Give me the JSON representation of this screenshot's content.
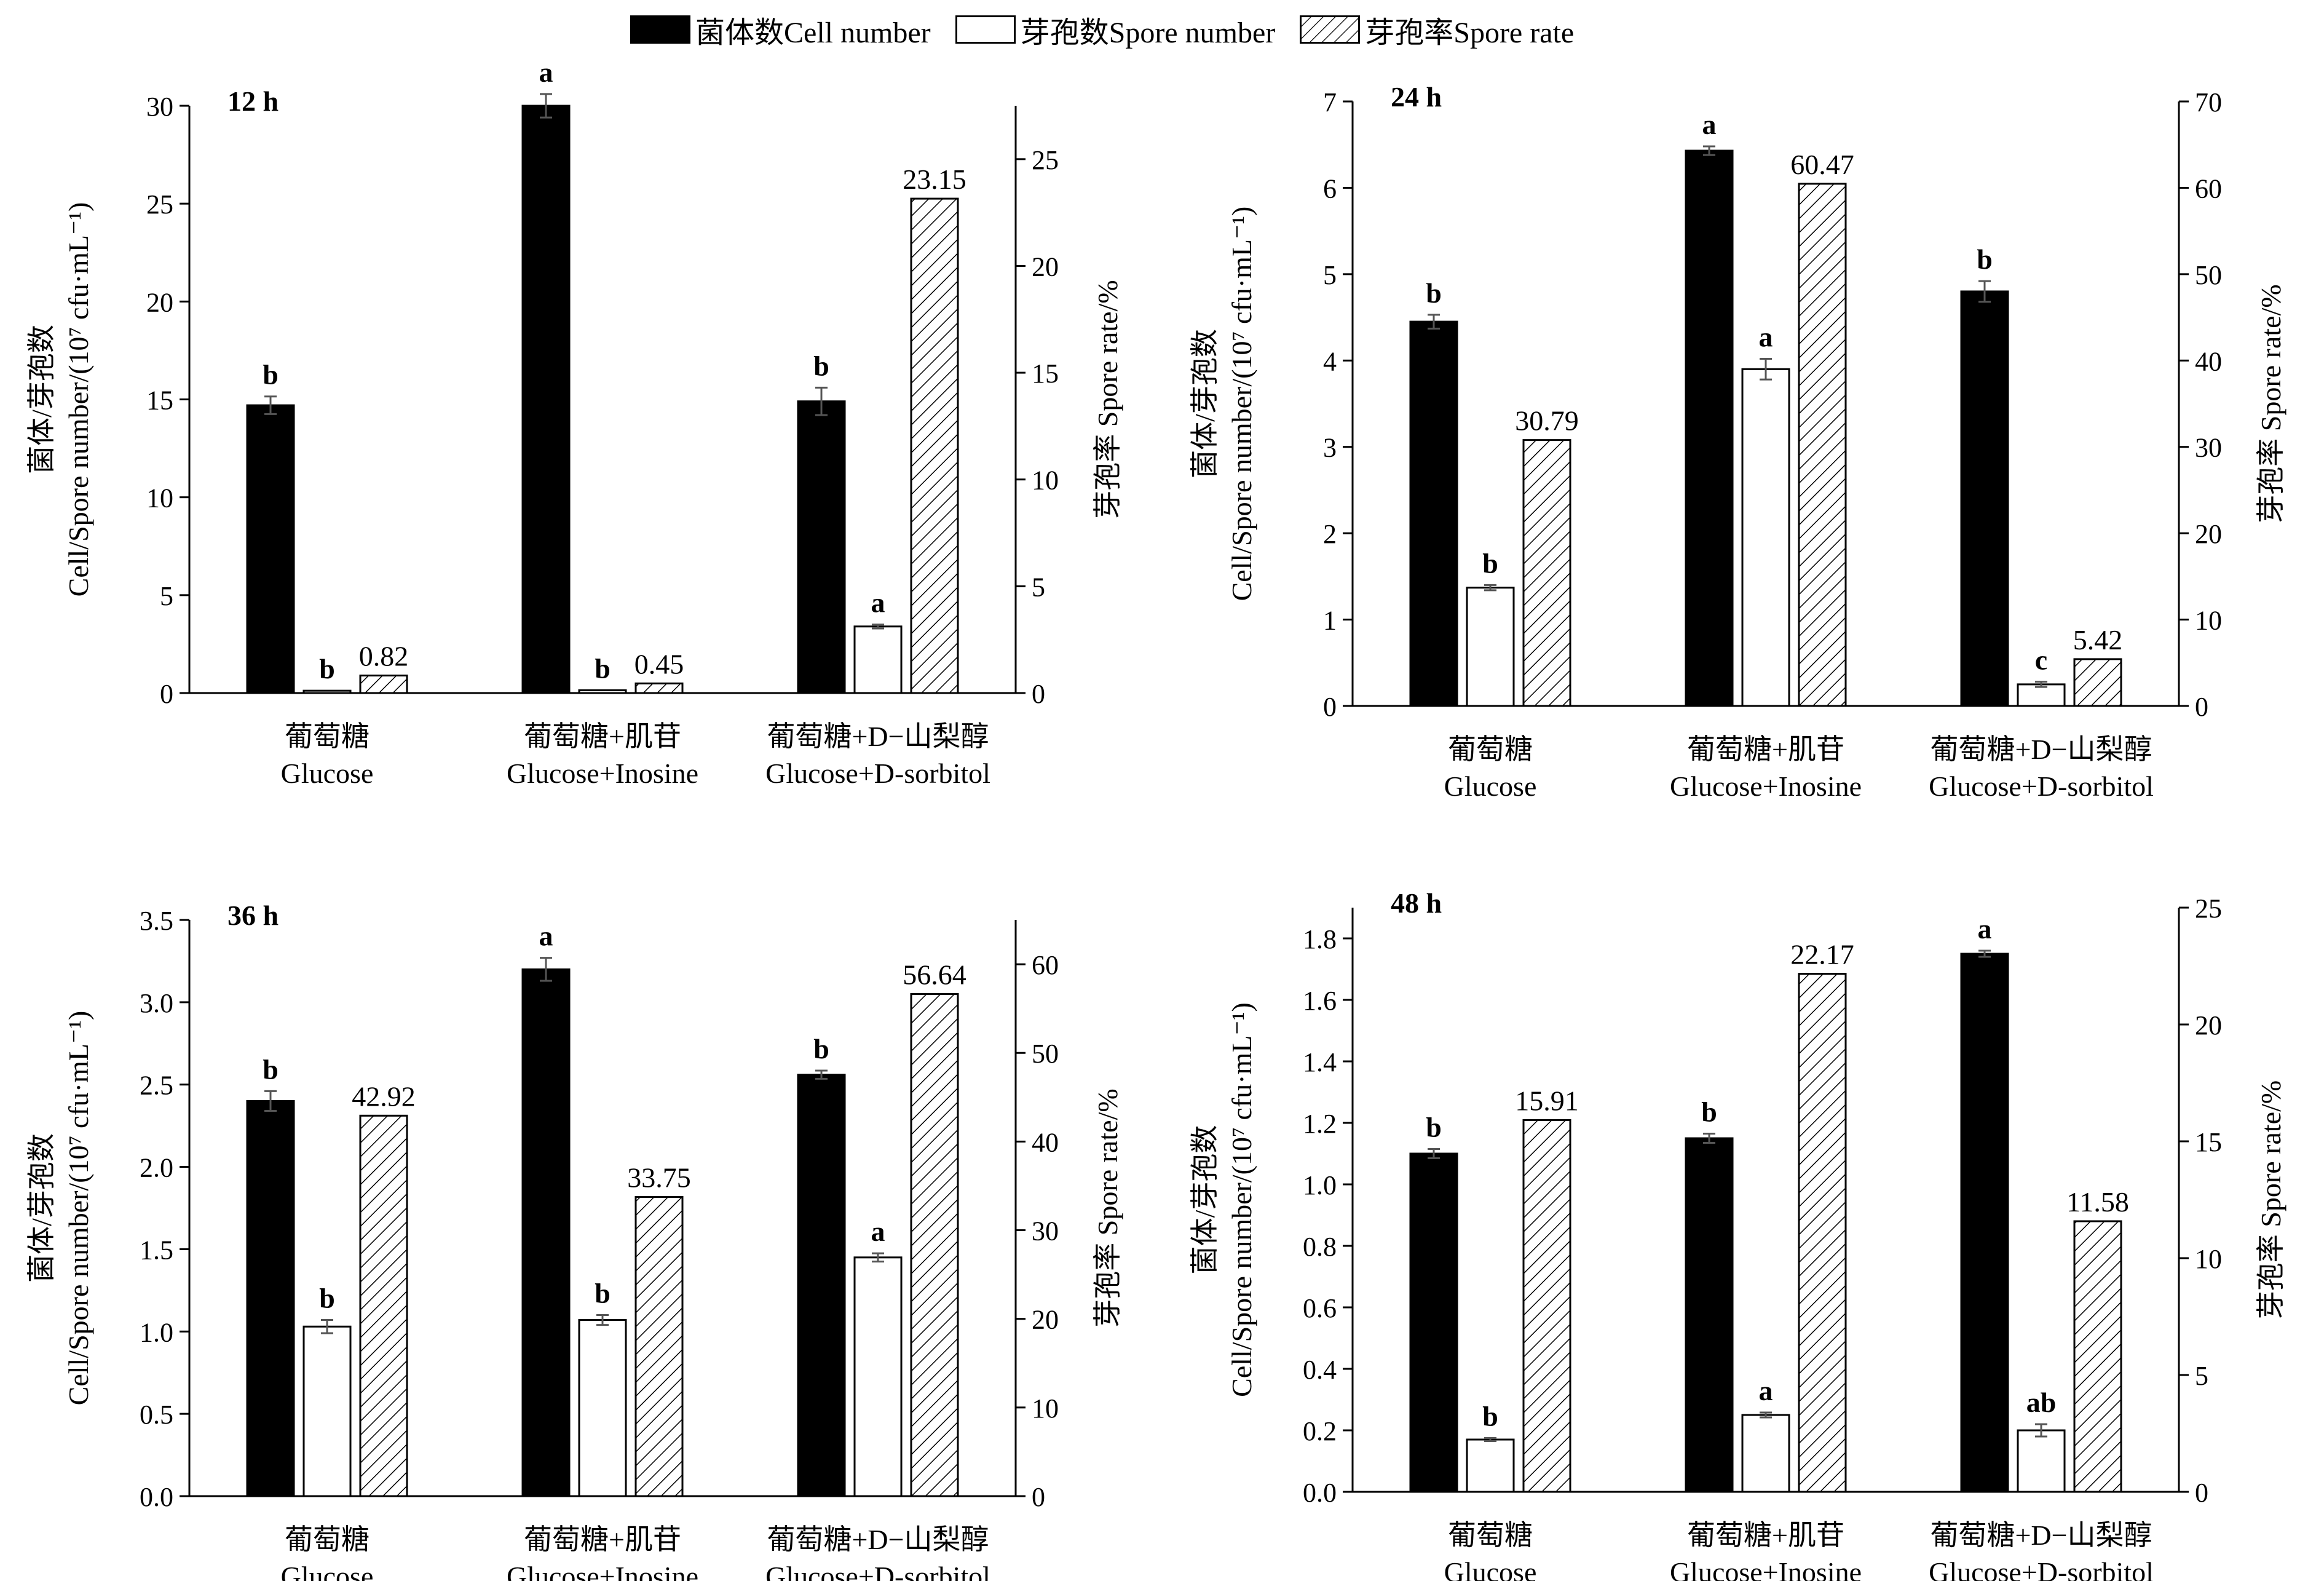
{
  "legend": {
    "cell": "菌体数Cell number",
    "spore": "芽孢数Spore number",
    "rate": "芽孢率Spore rate"
  },
  "axes": {
    "ylabel_left_line1": "菌体/芽孢数",
    "ylabel_left_line2": "Cell/Spore number/(10⁷ cfu·mL⁻¹)",
    "ylabel_right": "芽孢率  Spore rate/%"
  },
  "chart_data": [
    {
      "type": "bar",
      "panel_label": "12 h",
      "categories": [
        [
          "葡萄糖",
          "Glucose"
        ],
        [
          "葡萄糖+肌苷",
          "Glucose+Inosine"
        ],
        [
          "葡萄糖+D−山梨醇",
          "Glucose+D-sorbitol"
        ]
      ],
      "left_axis": {
        "ylim": [
          0,
          30
        ],
        "ticks": [
          0,
          5,
          10,
          15,
          20,
          25,
          30
        ]
      },
      "right_axis": {
        "ylim": [
          0,
          27.5
        ],
        "ticks": [
          0,
          5,
          10,
          15,
          20,
          25
        ]
      },
      "series": [
        {
          "name": "菌体数Cell number",
          "axis": "left",
          "values": [
            14.7,
            30.0,
            14.9
          ],
          "errors": [
            0.45,
            0.6,
            0.7
          ],
          "letters": [
            "b",
            "a",
            "b"
          ]
        },
        {
          "name": "芽孢数Spore number",
          "axis": "left",
          "values": [
            0.12,
            0.14,
            3.4
          ],
          "errors": [
            0,
            0,
            0.1
          ],
          "letters": [
            "b",
            "b",
            "a"
          ]
        },
        {
          "name": "芽孢率Spore rate",
          "axis": "right",
          "values": [
            0.82,
            0.45,
            23.15
          ],
          "labels": [
            "0.82",
            "0.45",
            "23.15"
          ]
        }
      ]
    },
    {
      "type": "bar",
      "panel_label": "24 h",
      "categories": [
        [
          "葡萄糖",
          "Glucose"
        ],
        [
          "葡萄糖+肌苷",
          "Glucose+Inosine"
        ],
        [
          "葡萄糖+D−山梨醇",
          "Glucose+D-sorbitol"
        ]
      ],
      "left_axis": {
        "ylim": [
          0,
          7
        ],
        "ticks": [
          0,
          1,
          2,
          3,
          4,
          5,
          6,
          7
        ]
      },
      "right_axis": {
        "ylim": [
          0,
          70
        ],
        "ticks": [
          0,
          10,
          20,
          30,
          40,
          50,
          60,
          70
        ]
      },
      "series": [
        {
          "name": "菌体数Cell number",
          "axis": "left",
          "values": [
            4.45,
            6.43,
            4.8
          ],
          "errors": [
            0.08,
            0.05,
            0.12
          ],
          "letters": [
            "b",
            "a",
            "b"
          ]
        },
        {
          "name": "芽孢数Spore number",
          "axis": "left",
          "values": [
            1.37,
            3.9,
            0.25
          ],
          "errors": [
            0.03,
            0.12,
            0.03
          ],
          "letters": [
            "b",
            "a",
            "c"
          ]
        },
        {
          "name": "芽孢率Spore rate",
          "axis": "right",
          "values": [
            30.79,
            60.47,
            5.42
          ],
          "labels": [
            "30.79",
            "60.47",
            "5.42"
          ]
        }
      ]
    },
    {
      "type": "bar",
      "panel_label": "36 h",
      "categories": [
        [
          "葡萄糖",
          "Glucose"
        ],
        [
          "葡萄糖+肌苷",
          "Glucose+Inosine"
        ],
        [
          "葡萄糖+D−山梨醇",
          "Glucose+D-sorbitol"
        ]
      ],
      "left_axis": {
        "ylim": [
          0,
          3.5
        ],
        "ticks": [
          "0.0",
          "0.5",
          "1.0",
          "1.5",
          "2.0",
          "2.5",
          "3.0",
          "3.5"
        ]
      },
      "right_axis": {
        "ylim": [
          0,
          65
        ],
        "ticks": [
          0,
          10,
          20,
          30,
          40,
          50,
          60
        ]
      },
      "series": [
        {
          "name": "菌体数Cell number",
          "axis": "left",
          "values": [
            2.4,
            3.2,
            2.56
          ],
          "errors": [
            0.06,
            0.07,
            0.025
          ],
          "letters": [
            "b",
            "a",
            "b"
          ]
        },
        {
          "name": "芽孢数Spore number",
          "axis": "left",
          "values": [
            1.03,
            1.07,
            1.45
          ],
          "errors": [
            0.04,
            0.03,
            0.025
          ],
          "letters": [
            "b",
            "b",
            "a"
          ]
        },
        {
          "name": "芽孢率Spore rate",
          "axis": "right",
          "values": [
            42.92,
            33.75,
            56.64
          ],
          "labels": [
            "42.92",
            "33.75",
            "56.64"
          ]
        }
      ]
    },
    {
      "type": "bar",
      "panel_label": "48 h",
      "categories": [
        [
          "葡萄糖",
          "Glucose"
        ],
        [
          "葡萄糖+肌苷",
          "Glucose+Inosine"
        ],
        [
          "葡萄糖+D−山梨醇",
          "Glucose+D-sorbitol"
        ]
      ],
      "left_axis": {
        "ylim": [
          0,
          1.9
        ],
        "ticks": [
          "0.0",
          "0.2",
          "0.4",
          "0.6",
          "0.8",
          "1.0",
          "1.2",
          "1.4",
          "1.6",
          "1.8"
        ]
      },
      "right_axis": {
        "ylim": [
          0,
          25
        ],
        "ticks": [
          0,
          5,
          10,
          15,
          20,
          25
        ]
      },
      "series": [
        {
          "name": "菌体数Cell number",
          "axis": "left",
          "values": [
            1.1,
            1.15,
            1.75
          ],
          "errors": [
            0.015,
            0.015,
            0.01
          ],
          "letters": [
            "b",
            "b",
            "a"
          ]
        },
        {
          "name": "芽孢数Spore number",
          "axis": "left",
          "values": [
            0.17,
            0.25,
            0.2
          ],
          "errors": [
            0.005,
            0.008,
            0.02
          ],
          "letters": [
            "b",
            "a",
            "ab"
          ]
        },
        {
          "name": "芽孢率Spore rate",
          "axis": "right",
          "values": [
            15.91,
            22.17,
            11.58
          ],
          "labels": [
            "15.91",
            "22.17",
            "11.58"
          ]
        }
      ]
    }
  ]
}
